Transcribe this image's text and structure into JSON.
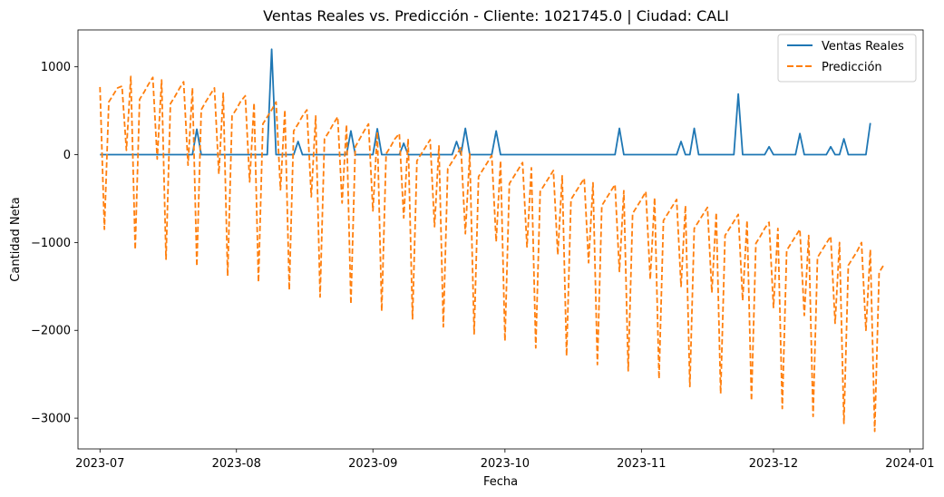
{
  "chart_data": {
    "type": "line",
    "title": "Ventas Reales vs. Predicción - Cliente: 1021745.0 | Ciudad: CALI",
    "xlabel": "Fecha",
    "ylabel": "Cantidad Neta",
    "x_axis_kind": "date",
    "xlim": [
      "2023-06-26",
      "2024-01-04"
    ],
    "ylim": [
      -3350,
      1420
    ],
    "x_ticks": [
      "2023-07-01",
      "2023-08-01",
      "2023-09-01",
      "2023-10-01",
      "2023-11-01",
      "2023-12-01",
      "2024-01-01"
    ],
    "x_tick_labels": [
      "2023-07",
      "2023-08",
      "2023-09",
      "2023-10",
      "2023-11",
      "2023-12",
      "2024-01"
    ],
    "y_ticks": [
      1000,
      0,
      -1000,
      -2000,
      -3000
    ],
    "y_tick_labels": [
      "1000",
      "0",
      "−1000",
      "−2000",
      "−3000"
    ],
    "legend_position": "top-right",
    "grid": false,
    "series": [
      {
        "name": "Ventas Reales",
        "color": "#1f77b4",
        "style": "solid",
        "points": [
          [
            "2023-07-01",
            0
          ],
          [
            "2023-07-22",
            0
          ],
          [
            "2023-07-23",
            290
          ],
          [
            "2023-07-24",
            0
          ],
          [
            "2023-08-08",
            0
          ],
          [
            "2023-08-09",
            1200
          ],
          [
            "2023-08-10",
            0
          ],
          [
            "2023-08-14",
            0
          ],
          [
            "2023-08-15",
            150
          ],
          [
            "2023-08-16",
            0
          ],
          [
            "2023-08-26",
            0
          ],
          [
            "2023-08-27",
            270
          ],
          [
            "2023-08-28",
            0
          ],
          [
            "2023-09-01",
            0
          ],
          [
            "2023-09-02",
            295
          ],
          [
            "2023-09-03",
            0
          ],
          [
            "2023-09-07",
            0
          ],
          [
            "2023-09-08",
            130
          ],
          [
            "2023-09-09",
            0
          ],
          [
            "2023-09-19",
            0
          ],
          [
            "2023-09-20",
            150
          ],
          [
            "2023-09-21",
            0
          ],
          [
            "2023-09-22",
            300
          ],
          [
            "2023-09-23",
            0
          ],
          [
            "2023-09-28",
            0
          ],
          [
            "2023-09-29",
            270
          ],
          [
            "2023-09-30",
            0
          ],
          [
            "2023-10-26",
            0
          ],
          [
            "2023-10-27",
            300
          ],
          [
            "2023-10-28",
            0
          ],
          [
            "2023-11-09",
            0
          ],
          [
            "2023-11-10",
            150
          ],
          [
            "2023-11-11",
            0
          ],
          [
            "2023-11-12",
            0
          ],
          [
            "2023-11-13",
            300
          ],
          [
            "2023-11-14",
            0
          ],
          [
            "2023-11-22",
            0
          ],
          [
            "2023-11-23",
            690
          ],
          [
            "2023-11-24",
            0
          ],
          [
            "2023-11-29",
            0
          ],
          [
            "2023-11-30",
            90
          ],
          [
            "2023-12-01",
            0
          ],
          [
            "2023-12-06",
            0
          ],
          [
            "2023-12-07",
            240
          ],
          [
            "2023-12-08",
            0
          ],
          [
            "2023-12-13",
            0
          ],
          [
            "2023-12-14",
            90
          ],
          [
            "2023-12-15",
            0
          ],
          [
            "2023-12-16",
            0
          ],
          [
            "2023-12-17",
            180
          ],
          [
            "2023-12-18",
            0
          ],
          [
            "2023-12-22",
            0
          ],
          [
            "2023-12-23",
            360
          ]
        ]
      },
      {
        "name": "Predicción",
        "color": "#ff7f0e",
        "style": "dashed",
        "points": [
          [
            "2023-07-01",
            770
          ],
          [
            "2023-07-02",
            -850
          ],
          [
            "2023-07-03",
            600
          ],
          [
            "2023-07-04",
            680
          ],
          [
            "2023-07-05",
            760
          ],
          [
            "2023-07-06",
            780
          ],
          [
            "2023-07-07",
            50
          ],
          [
            "2023-07-08",
            890
          ],
          [
            "2023-07-09",
            -1080
          ],
          [
            "2023-07-10",
            630
          ],
          [
            "2023-07-11",
            710
          ],
          [
            "2023-07-12",
            800
          ],
          [
            "2023-07-13",
            880
          ],
          [
            "2023-07-14",
            -50
          ],
          [
            "2023-07-15",
            850
          ],
          [
            "2023-07-16",
            -1190
          ],
          [
            "2023-07-17",
            580
          ],
          [
            "2023-07-18",
            660
          ],
          [
            "2023-07-19",
            750
          ],
          [
            "2023-07-20",
            830
          ],
          [
            "2023-07-21",
            -120
          ],
          [
            "2023-07-22",
            760
          ],
          [
            "2023-07-23",
            -1270
          ],
          [
            "2023-07-24",
            510
          ],
          [
            "2023-07-25",
            600
          ],
          [
            "2023-07-26",
            680
          ],
          [
            "2023-07-27",
            760
          ],
          [
            "2023-07-28",
            -220
          ],
          [
            "2023-07-29",
            700
          ],
          [
            "2023-07-30",
            -1380
          ],
          [
            "2023-07-31",
            440
          ],
          [
            "2023-08-01",
            520
          ],
          [
            "2023-08-02",
            610
          ],
          [
            "2023-08-03",
            670
          ],
          [
            "2023-08-04",
            -310
          ],
          [
            "2023-08-05",
            590
          ],
          [
            "2023-08-06",
            -1450
          ],
          [
            "2023-08-07",
            350
          ],
          [
            "2023-08-08",
            430
          ],
          [
            "2023-08-09",
            510
          ],
          [
            "2023-08-10",
            600
          ],
          [
            "2023-08-11",
            -400
          ],
          [
            "2023-08-12",
            510
          ],
          [
            "2023-08-13",
            -1540
          ],
          [
            "2023-08-14",
            270
          ],
          [
            "2023-08-15",
            350
          ],
          [
            "2023-08-16",
            440
          ],
          [
            "2023-08-17",
            510
          ],
          [
            "2023-08-18",
            -480
          ],
          [
            "2023-08-19",
            440
          ],
          [
            "2023-08-20",
            -1620
          ],
          [
            "2023-08-21",
            180
          ],
          [
            "2023-08-22",
            260
          ],
          [
            "2023-08-23",
            350
          ],
          [
            "2023-08-24",
            430
          ],
          [
            "2023-08-25",
            -550
          ],
          [
            "2023-08-26",
            340
          ],
          [
            "2023-08-27",
            -1700
          ],
          [
            "2023-08-28",
            90
          ],
          [
            "2023-08-29",
            180
          ],
          [
            "2023-08-30",
            270
          ],
          [
            "2023-08-31",
            350
          ],
          [
            "2023-09-01",
            -640
          ],
          [
            "2023-09-02",
            260
          ],
          [
            "2023-09-03",
            -1780
          ],
          [
            "2023-09-04",
            10
          ],
          [
            "2023-09-05",
            90
          ],
          [
            "2023-09-06",
            180
          ],
          [
            "2023-09-07",
            240
          ],
          [
            "2023-09-08",
            -720
          ],
          [
            "2023-09-09",
            180
          ],
          [
            "2023-09-10",
            -1870
          ],
          [
            "2023-09-11",
            -70
          ],
          [
            "2023-09-12",
            10
          ],
          [
            "2023-09-13",
            90
          ],
          [
            "2023-09-14",
            170
          ],
          [
            "2023-09-15",
            -820
          ],
          [
            "2023-09-16",
            100
          ],
          [
            "2023-09-17",
            -1960
          ],
          [
            "2023-09-18",
            -160
          ],
          [
            "2023-09-19",
            -80
          ],
          [
            "2023-09-20",
            0
          ],
          [
            "2023-09-21",
            80
          ],
          [
            "2023-09-22",
            -900
          ],
          [
            "2023-09-23",
            10
          ],
          [
            "2023-09-24",
            -2040
          ],
          [
            "2023-09-25",
            -250
          ],
          [
            "2023-09-26",
            -170
          ],
          [
            "2023-09-27",
            -90
          ],
          [
            "2023-09-28",
            -10
          ],
          [
            "2023-09-29",
            -990
          ],
          [
            "2023-09-30",
            -70
          ],
          [
            "2023-10-01",
            -2120
          ],
          [
            "2023-10-02",
            -330
          ],
          [
            "2023-10-03",
            -250
          ],
          [
            "2023-10-04",
            -170
          ],
          [
            "2023-10-05",
            -90
          ],
          [
            "2023-10-06",
            -1050
          ],
          [
            "2023-10-07",
            -150
          ],
          [
            "2023-10-08",
            -2200
          ],
          [
            "2023-10-09",
            -420
          ],
          [
            "2023-10-10",
            -340
          ],
          [
            "2023-10-11",
            -260
          ],
          [
            "2023-10-12",
            -180
          ],
          [
            "2023-10-13",
            -1140
          ],
          [
            "2023-10-14",
            -240
          ],
          [
            "2023-10-15",
            -2290
          ],
          [
            "2023-10-16",
            -510
          ],
          [
            "2023-10-17",
            -430
          ],
          [
            "2023-10-18",
            -350
          ],
          [
            "2023-10-19",
            -270
          ],
          [
            "2023-10-20",
            -1230
          ],
          [
            "2023-10-21",
            -320
          ],
          [
            "2023-10-22",
            -2390
          ],
          [
            "2023-10-23",
            -580
          ],
          [
            "2023-10-24",
            -500
          ],
          [
            "2023-10-25",
            -420
          ],
          [
            "2023-10-26",
            -340
          ],
          [
            "2023-10-27",
            -1330
          ],
          [
            "2023-10-28",
            -410
          ],
          [
            "2023-10-29",
            -2460
          ],
          [
            "2023-10-30",
            -670
          ],
          [
            "2023-10-31",
            -590
          ],
          [
            "2023-11-01",
            -510
          ],
          [
            "2023-11-02",
            -420
          ],
          [
            "2023-11-03",
            -1420
          ],
          [
            "2023-11-04",
            -490
          ],
          [
            "2023-11-05",
            -2550
          ],
          [
            "2023-11-06",
            -750
          ],
          [
            "2023-11-07",
            -670
          ],
          [
            "2023-11-08",
            -590
          ],
          [
            "2023-11-09",
            -510
          ],
          [
            "2023-11-10",
            -1500
          ],
          [
            "2023-11-11",
            -580
          ],
          [
            "2023-11-12",
            -2640
          ],
          [
            "2023-11-13",
            -840
          ],
          [
            "2023-11-14",
            -760
          ],
          [
            "2023-11-15",
            -680
          ],
          [
            "2023-11-16",
            -600
          ],
          [
            "2023-11-17",
            -1570
          ],
          [
            "2023-11-18",
            -660
          ],
          [
            "2023-11-19",
            -2720
          ],
          [
            "2023-11-20",
            -920
          ],
          [
            "2023-11-21",
            -840
          ],
          [
            "2023-11-22",
            -760
          ],
          [
            "2023-11-23",
            -680
          ],
          [
            "2023-11-24",
            -1660
          ],
          [
            "2023-11-25",
            -750
          ],
          [
            "2023-11-26",
            -2800
          ],
          [
            "2023-11-27",
            -1010
          ],
          [
            "2023-11-28",
            -930
          ],
          [
            "2023-11-29",
            -840
          ],
          [
            "2023-11-30",
            -770
          ],
          [
            "2023-12-01",
            -1740
          ],
          [
            "2023-12-02",
            -840
          ],
          [
            "2023-12-03",
            -2890
          ],
          [
            "2023-12-04",
            -1090
          ],
          [
            "2023-12-05",
            -1010
          ],
          [
            "2023-12-06",
            -930
          ],
          [
            "2023-12-07",
            -850
          ],
          [
            "2023-12-08",
            -1830
          ],
          [
            "2023-12-09",
            -920
          ],
          [
            "2023-12-10",
            -2980
          ],
          [
            "2023-12-11",
            -1170
          ],
          [
            "2023-12-12",
            -1090
          ],
          [
            "2023-12-13",
            -1010
          ],
          [
            "2023-12-14",
            -930
          ],
          [
            "2023-12-15",
            -1920
          ],
          [
            "2023-12-16",
            -1000
          ],
          [
            "2023-12-17",
            -3060
          ],
          [
            "2023-12-18",
            -1260
          ],
          [
            "2023-12-19",
            -1180
          ],
          [
            "2023-12-20",
            -1100
          ],
          [
            "2023-12-21",
            -1000
          ],
          [
            "2023-12-22",
            -2000
          ],
          [
            "2023-12-23",
            -1080
          ],
          [
            "2023-12-24",
            -3150
          ],
          [
            "2023-12-25",
            -1340
          ],
          [
            "2023-12-26",
            -1260
          ]
        ]
      }
    ]
  }
}
